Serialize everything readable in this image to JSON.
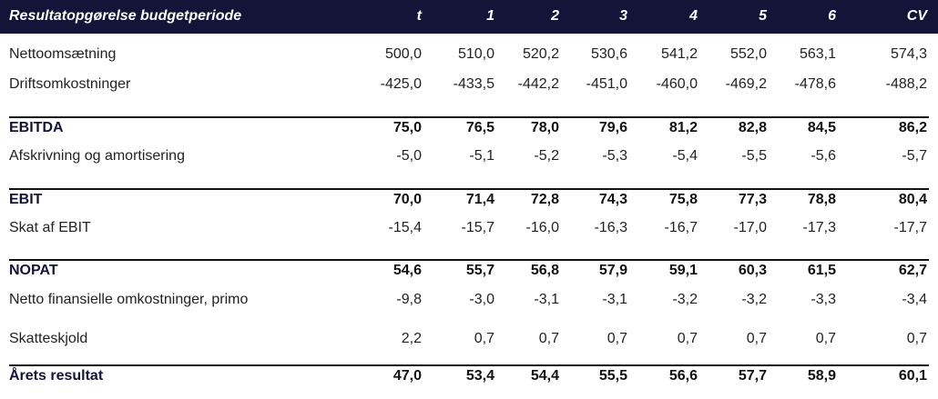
{
  "table": {
    "header": [
      "Resultatopgørelse budgetperiode",
      "t",
      "1",
      "2",
      "3",
      "4",
      "5",
      "6",
      "CV"
    ],
    "rows": [
      {
        "label": "Nettoomsætning",
        "values": [
          "500,0",
          "510,0",
          "520,2",
          "530,6",
          "541,2",
          "552,0",
          "563,1",
          "574,3"
        ]
      },
      {
        "label": "Driftsomkostninger",
        "values": [
          "-425,0",
          "-433,5",
          "-442,2",
          "-451,0",
          "-460,0",
          "-469,2",
          "-478,6",
          "-488,2"
        ]
      },
      {
        "label": "EBITDA",
        "bold": true,
        "values": [
          "75,0",
          "76,5",
          "78,0",
          "79,6",
          "81,2",
          "82,8",
          "84,5",
          "86,2"
        ]
      },
      {
        "label": "Afskrivning og amortisering",
        "values": [
          "-5,0",
          "-5,1",
          "-5,2",
          "-5,3",
          "-5,4",
          "-5,5",
          "-5,6",
          "-5,7"
        ]
      },
      {
        "label": "EBIT",
        "bold": true,
        "values": [
          "70,0",
          "71,4",
          "72,8",
          "74,3",
          "75,8",
          "77,3",
          "78,8",
          "80,4"
        ]
      },
      {
        "label": "Skat af EBIT",
        "values": [
          "-15,4",
          "-15,7",
          "-16,0",
          "-16,3",
          "-16,7",
          "-17,0",
          "-17,3",
          "-17,7"
        ]
      },
      {
        "label": "NOPAT",
        "bold": true,
        "values": [
          "54,6",
          "55,7",
          "56,8",
          "57,9",
          "59,1",
          "60,3",
          "61,5",
          "62,7"
        ]
      },
      {
        "label": "Netto finansielle omkostninger, primo",
        "values": [
          "-9,8",
          "-3,0",
          "-3,1",
          "-3,1",
          "-3,2",
          "-3,2",
          "-3,3",
          "-3,4"
        ]
      },
      {
        "label": "Skatteskjold",
        "values": [
          "2,2",
          "0,7",
          "0,7",
          "0,7",
          "0,7",
          "0,7",
          "0,7",
          "0,7"
        ]
      },
      {
        "label": "Årets resultat",
        "bold": true,
        "values": [
          "47,0",
          "53,4",
          "54,4",
          "55,5",
          "56,6",
          "57,7",
          "58,9",
          "60,1"
        ]
      }
    ]
  }
}
